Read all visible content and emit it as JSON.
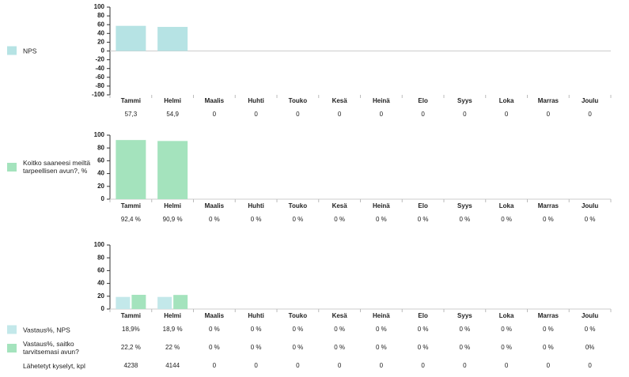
{
  "chart_data": [
    {
      "type": "bar",
      "categories": [
        "Tammi",
        "Helmi",
        "Maalis",
        "Huhti",
        "Touko",
        "Kesä",
        "Heinä",
        "Elo",
        "Syys",
        "Loka",
        "Marras",
        "Joulu"
      ],
      "series": [
        {
          "name": "NPS",
          "color": "#b6e3e4",
          "values": [
            57.3,
            54.9,
            0,
            0,
            0,
            0,
            0,
            0,
            0,
            0,
            0,
            0
          ],
          "value_labels": [
            "57,3",
            "54,9",
            "0",
            "0",
            "0",
            "0",
            "0",
            "0",
            "0",
            "0",
            "0",
            "0"
          ]
        }
      ],
      "ylim": [
        -100,
        100
      ],
      "yticks": [
        -100,
        -80,
        -60,
        -40,
        -20,
        0,
        20,
        40,
        60,
        80,
        100
      ]
    },
    {
      "type": "bar",
      "categories": [
        "Tammi",
        "Helmi",
        "Maalis",
        "Huhti",
        "Touko",
        "Kesä",
        "Heinä",
        "Elo",
        "Syys",
        "Loka",
        "Marras",
        "Joulu"
      ],
      "series": [
        {
          "name": "Koitko saaneesi meiltä tarpeellisen avun?, %",
          "color": "#a4e3bd",
          "values": [
            92.4,
            90.9,
            0,
            0,
            0,
            0,
            0,
            0,
            0,
            0,
            0,
            0
          ],
          "value_labels": [
            "92,4 %",
            "90,9 %",
            "0 %",
            "0 %",
            "0 %",
            "0 %",
            "0 %",
            "0 %",
            "0 %",
            "0 %",
            "0 %",
            "0 %"
          ]
        }
      ],
      "ylim": [
        0,
        100
      ],
      "yticks": [
        0,
        20,
        40,
        60,
        80,
        100
      ]
    },
    {
      "type": "bar",
      "categories": [
        "Tammi",
        "Helmi",
        "Maalis",
        "Huhti",
        "Touko",
        "Kesä",
        "Heinä",
        "Elo",
        "Syys",
        "Loka",
        "Marras",
        "Joulu"
      ],
      "series": [
        {
          "name": "Vastaus%, NPS",
          "color": "#c3e8ea",
          "values": [
            18.9,
            18.9,
            0,
            0,
            0,
            0,
            0,
            0,
            0,
            0,
            0,
            0
          ],
          "value_labels": [
            "18,9%",
            "18,9 %",
            "0 %",
            "0 %",
            "0 %",
            "0 %",
            "0 %",
            "0 %",
            "0 %",
            "0 %",
            "0 %",
            "0 %"
          ]
        },
        {
          "name": "Vastaus%, saitko tarvitsemasi avun?",
          "color": "#a4e3bd",
          "values": [
            22.2,
            22,
            0,
            0,
            0,
            0,
            0,
            0,
            0,
            0,
            0,
            0
          ],
          "value_labels": [
            "22,2 %",
            "22 %",
            "0 %",
            "0 %",
            "0 %",
            "0 %",
            "0 %",
            "0 %",
            "0 %",
            "0 %",
            "0 %",
            "0%"
          ]
        }
      ],
      "table_rows": [
        {
          "name": "Lähetetyt kyselyt, kpl",
          "values": [
            4238,
            4144,
            0,
            0,
            0,
            0,
            0,
            0,
            0,
            0,
            0,
            0
          ]
        }
      ],
      "ylim": [
        0,
        100
      ],
      "yticks": [
        0,
        20,
        40,
        60,
        80,
        100
      ]
    }
  ]
}
